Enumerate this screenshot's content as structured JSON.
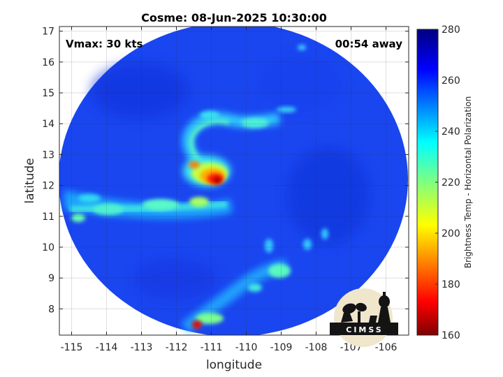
{
  "title": "Cosme: 08-Jun-2025 10:30:00",
  "annotations": {
    "vmax": "Vmax: 30 kts",
    "away": "00:54 away"
  },
  "axes": {
    "xlabel": "longitude",
    "ylabel": "latitude",
    "xlim": [
      -115.35,
      -105.35
    ],
    "ylim": [
      7.15,
      17.15
    ],
    "xticks": [
      -115,
      -114,
      -113,
      -112,
      -111,
      -110,
      -109,
      -108,
      -107,
      -106
    ],
    "yticks": [
      8,
      9,
      10,
      11,
      12,
      13,
      14,
      15,
      16,
      17
    ],
    "grid": true
  },
  "colorbar": {
    "label": "Brightness Temp - Horizontal Polarization",
    "range": [
      160,
      280
    ],
    "ticks": [
      160,
      180,
      200,
      220,
      240,
      260,
      280
    ],
    "colormap": "jet"
  },
  "image": {
    "type": "microwave brightness temperature swath",
    "background_value": 262,
    "features": [
      {
        "name": "core",
        "lon": -110.8,
        "lat": 12.1,
        "value": 170
      },
      {
        "name": "inner-ring",
        "lon": -111.2,
        "lat": 12.5,
        "value": 215
      },
      {
        "name": "north-arc",
        "lon": -110.5,
        "lat": 14.2,
        "value": 230
      },
      {
        "name": "western-band",
        "lon": -113.0,
        "lat": 11.2,
        "value": 232
      },
      {
        "name": "southern-band",
        "lon": -109.8,
        "lat": 9.0,
        "value": 238
      },
      {
        "name": "south-cold-spot",
        "lon": -111.4,
        "lat": 7.4,
        "value": 170
      }
    ]
  },
  "logo": {
    "text": "CIMSS"
  }
}
